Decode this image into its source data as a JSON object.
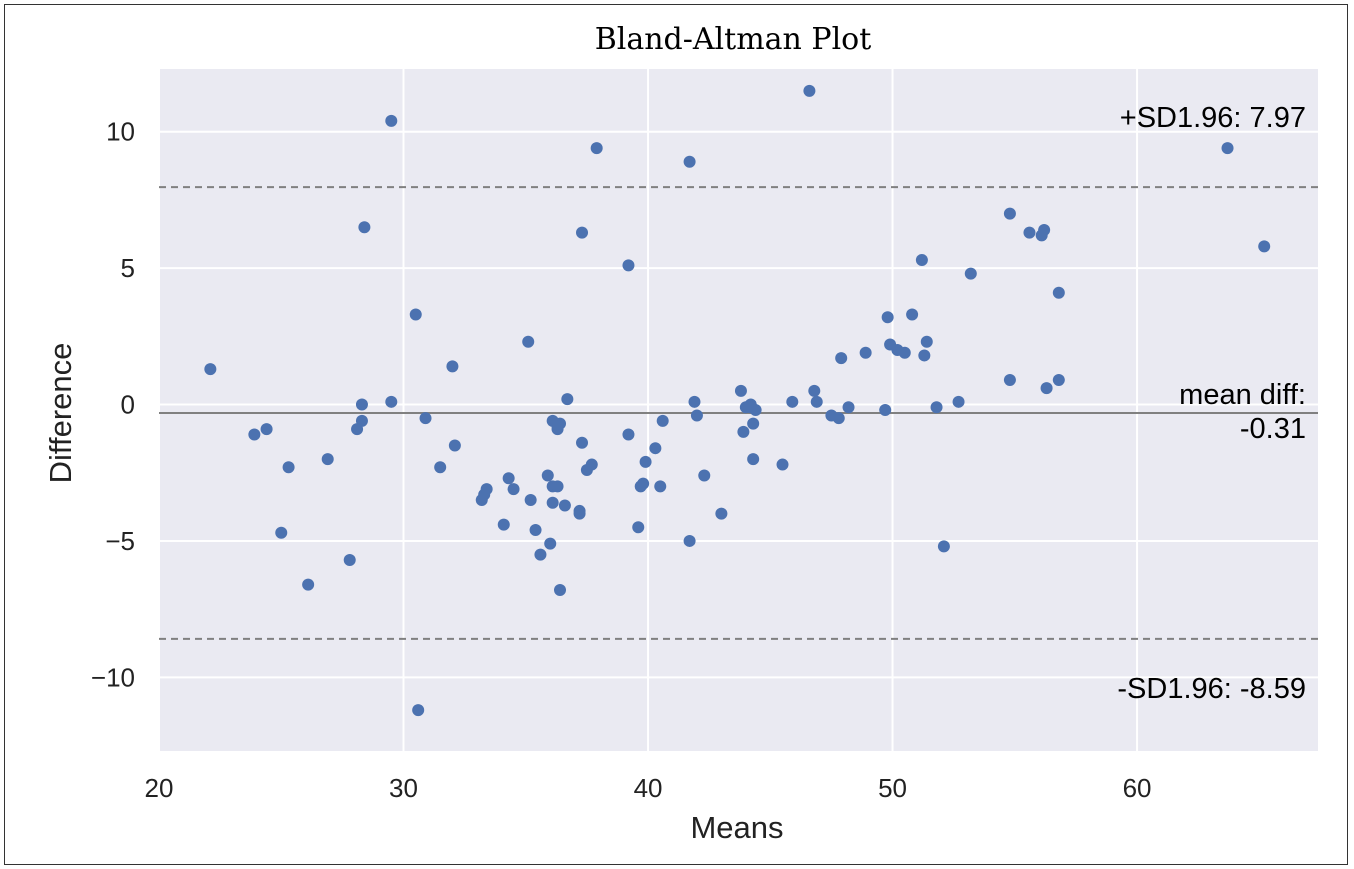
{
  "chart_data": {
    "type": "scatter",
    "title": "Bland-Altman Plot",
    "xlabel": "Means",
    "ylabel": "Difference",
    "xlim": [
      20,
      67.4
    ],
    "ylim": [
      -12.7,
      12.3
    ],
    "xticks": [
      20,
      30,
      40,
      50,
      60
    ],
    "yticks": [
      10,
      5,
      0,
      -5,
      -10
    ],
    "ytick_labels": [
      "10",
      "5",
      "0",
      "−5",
      "−10"
    ],
    "grid": true,
    "colors": {
      "background": "#eaeaf2",
      "grid": "#ffffff",
      "points": "#4c72b0",
      "lines": "#808080"
    },
    "reference_lines": [
      {
        "name": "upper",
        "value": 7.97,
        "style": "dashed",
        "label": "+SD1.96: 7.97"
      },
      {
        "name": "mean",
        "value": -0.31,
        "style": "solid",
        "label": [
          "mean diff:",
          "-0.31"
        ]
      },
      {
        "name": "lower",
        "value": -8.59,
        "style": "dashed",
        "label": "-SD1.96: -8.59"
      }
    ],
    "points": [
      [
        22.1,
        1.3
      ],
      [
        23.9,
        -1.1
      ],
      [
        24.4,
        -0.9
      ],
      [
        25.0,
        -4.7
      ],
      [
        25.3,
        -2.3
      ],
      [
        26.1,
        -6.6
      ],
      [
        26.9,
        -2.0
      ],
      [
        27.8,
        -5.7
      ],
      [
        28.1,
        -0.9
      ],
      [
        28.3,
        0.0
      ],
      [
        28.3,
        -0.6
      ],
      [
        28.4,
        6.5
      ],
      [
        29.5,
        10.4
      ],
      [
        29.5,
        0.1
      ],
      [
        30.5,
        3.3
      ],
      [
        30.6,
        -11.2
      ],
      [
        30.9,
        -0.5
      ],
      [
        31.5,
        -2.3
      ],
      [
        32.0,
        1.4
      ],
      [
        32.1,
        -1.5
      ],
      [
        33.2,
        -3.5
      ],
      [
        33.3,
        -3.3
      ],
      [
        33.4,
        -3.1
      ],
      [
        34.1,
        -4.4
      ],
      [
        34.3,
        -2.7
      ],
      [
        34.5,
        -3.1
      ],
      [
        35.1,
        2.3
      ],
      [
        35.2,
        -3.5
      ],
      [
        35.4,
        -4.6
      ],
      [
        35.6,
        -5.5
      ],
      [
        35.9,
        -2.6
      ],
      [
        36.0,
        -5.1
      ],
      [
        36.1,
        -3.0
      ],
      [
        36.1,
        -3.6
      ],
      [
        36.1,
        -0.6
      ],
      [
        36.3,
        -3.0
      ],
      [
        36.3,
        -0.8
      ],
      [
        36.3,
        -0.9
      ],
      [
        36.4,
        -6.8
      ],
      [
        36.4,
        -0.7
      ],
      [
        36.6,
        -3.7
      ],
      [
        36.7,
        0.2
      ],
      [
        37.2,
        -4.0
      ],
      [
        37.2,
        -3.9
      ],
      [
        37.3,
        6.3
      ],
      [
        37.3,
        -1.4
      ],
      [
        37.5,
        -2.4
      ],
      [
        37.7,
        -2.2
      ],
      [
        37.9,
        9.4
      ],
      [
        39.2,
        5.1
      ],
      [
        39.2,
        -1.1
      ],
      [
        39.6,
        -4.5
      ],
      [
        39.7,
        -3.0
      ],
      [
        39.8,
        -2.9
      ],
      [
        39.9,
        -2.1
      ],
      [
        40.3,
        -1.6
      ],
      [
        40.5,
        -3.0
      ],
      [
        40.6,
        -0.6
      ],
      [
        41.7,
        8.9
      ],
      [
        41.7,
        -5.0
      ],
      [
        41.9,
        0.1
      ],
      [
        42.0,
        -0.4
      ],
      [
        42.3,
        -2.6
      ],
      [
        43.0,
        -4.0
      ],
      [
        43.8,
        0.5
      ],
      [
        43.9,
        -1.0
      ],
      [
        44.0,
        -0.1
      ],
      [
        44.2,
        0.0
      ],
      [
        44.2,
        -0.1
      ],
      [
        44.3,
        -2.0
      ],
      [
        44.3,
        -0.7
      ],
      [
        44.4,
        -0.2
      ],
      [
        45.5,
        -2.2
      ],
      [
        45.9,
        0.1
      ],
      [
        46.6,
        11.5
      ],
      [
        46.8,
        0.5
      ],
      [
        46.9,
        0.1
      ],
      [
        47.5,
        -0.4
      ],
      [
        47.8,
        -0.5
      ],
      [
        47.9,
        1.7
      ],
      [
        48.2,
        -0.1
      ],
      [
        48.9,
        1.9
      ],
      [
        49.7,
        -0.2
      ],
      [
        49.8,
        3.2
      ],
      [
        49.9,
        2.2
      ],
      [
        50.2,
        2.0
      ],
      [
        50.5,
        1.9
      ],
      [
        50.8,
        3.3
      ],
      [
        51.2,
        5.3
      ],
      [
        51.3,
        1.8
      ],
      [
        51.4,
        2.3
      ],
      [
        51.8,
        -0.1
      ],
      [
        52.1,
        -5.2
      ],
      [
        52.7,
        0.1
      ],
      [
        53.2,
        4.8
      ],
      [
        54.8,
        7.0
      ],
      [
        54.8,
        0.9
      ],
      [
        55.6,
        6.3
      ],
      [
        56.1,
        6.2
      ],
      [
        56.2,
        6.4
      ],
      [
        56.3,
        0.6
      ],
      [
        56.8,
        0.9
      ],
      [
        56.8,
        4.1
      ],
      [
        63.7,
        9.4
      ],
      [
        65.2,
        5.8
      ]
    ]
  }
}
